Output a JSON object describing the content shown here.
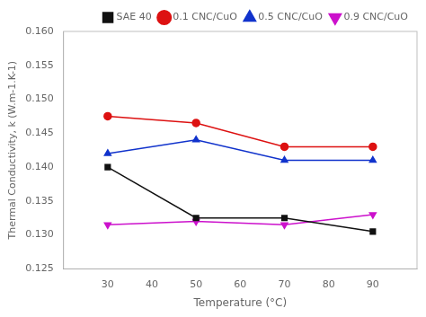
{
  "chart_data": {
    "type": "line",
    "xlabel": "Temperature (°C)",
    "ylabel": "Thermal Conductivity, k (W.m-1.K-1)",
    "x": [
      30,
      50,
      70,
      90
    ],
    "series": [
      {
        "name": "SAE 40",
        "color": "#111111",
        "marker": "square",
        "values": [
          0.14,
          0.1325,
          0.1325,
          0.1305
        ]
      },
      {
        "name": "0.1 CNC/CuO",
        "color": "#dd1111",
        "marker": "circle",
        "values": [
          0.1475,
          0.1465,
          0.143,
          0.143
        ]
      },
      {
        "name": "0.5 CNC/CuO",
        "color": "#1133cc",
        "marker": "triangle",
        "values": [
          0.142,
          0.144,
          0.141,
          0.141
        ]
      },
      {
        "name": "0.9 CNC/CuO",
        "color": "#cc11cc",
        "marker": "triangle_down",
        "values": [
          0.1315,
          0.132,
          0.1315,
          0.133
        ]
      }
    ],
    "xlim": [
      20,
      100
    ],
    "xticks": [
      30,
      40,
      50,
      60,
      70,
      80,
      90
    ],
    "ylim": [
      0.125,
      0.16
    ],
    "yticks": [
      0.125,
      {
        "value": 0.13,
        "label": "0.130"
      },
      0.135,
      {
        "value": 0.14,
        "label": "0.140"
      },
      0.145,
      {
        "value": 0.15,
        "label": "0.150"
      },
      0.155,
      {
        "value": 0.16,
        "label": "0.160"
      }
    ],
    "grid": false,
    "legend": "upper right"
  }
}
